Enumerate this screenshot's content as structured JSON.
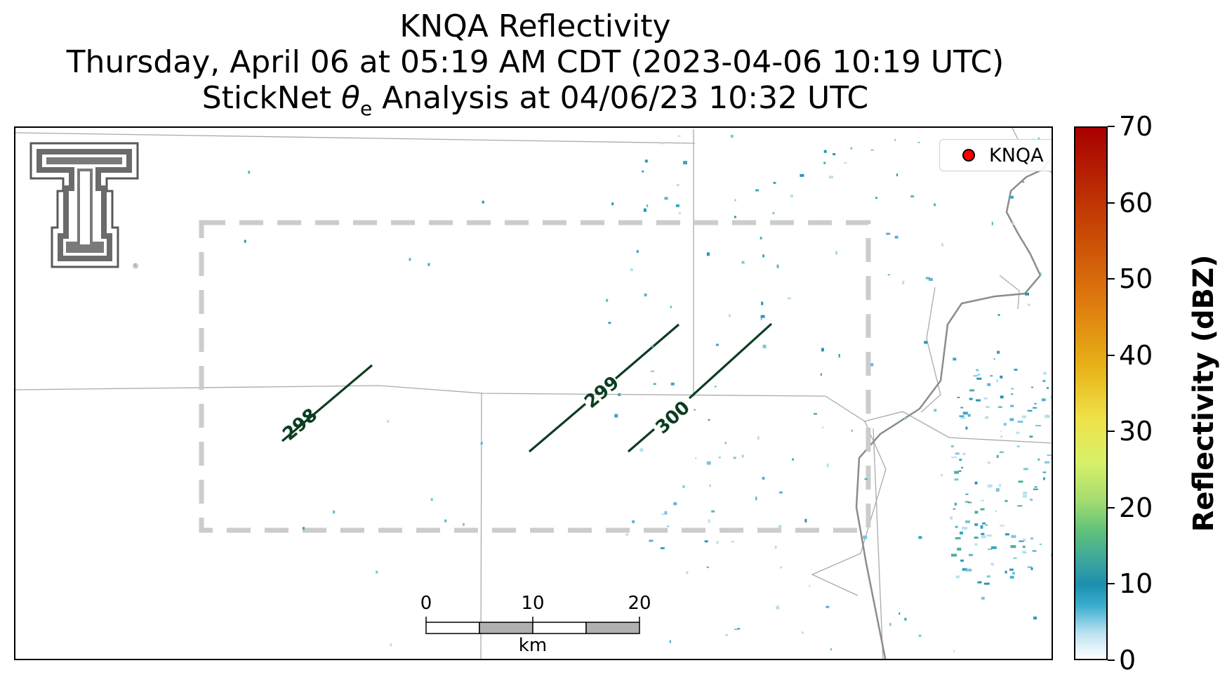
{
  "title": {
    "line1": "KNQA Reflectivity",
    "line2": "Thursday, April 06 at 05:19 AM CDT (2023-04-06 10:19 UTC)",
    "line3_prefix": "StickNet ",
    "line3_theta": "θ",
    "line3_sub": "e",
    "line3_suffix": " Analysis at 04/06/23 10:32 UTC"
  },
  "legend": {
    "label": "KNQA",
    "marker_color": "#ff0000"
  },
  "contours": [
    {
      "label": "298",
      "color": "#0b3d20"
    },
    {
      "label": "299",
      "color": "#0b3d20"
    },
    {
      "label": "300",
      "color": "#0b3d20"
    }
  ],
  "scalebar": {
    "labels": [
      "0",
      "10",
      "20"
    ],
    "unit": "km"
  },
  "colorbar": {
    "label": "Reflectivity (dBZ)",
    "ticks": [
      "0",
      "10",
      "20",
      "30",
      "40",
      "50",
      "60",
      "70"
    ],
    "range": [
      0,
      70
    ]
  },
  "colors": {
    "contour": "#0b3d20",
    "analysis_box": "#cccccc",
    "boundary": "#aaaaaa",
    "river": "#8c8c8c"
  },
  "icons": {
    "logo": "university-double-t-logo-icon"
  }
}
